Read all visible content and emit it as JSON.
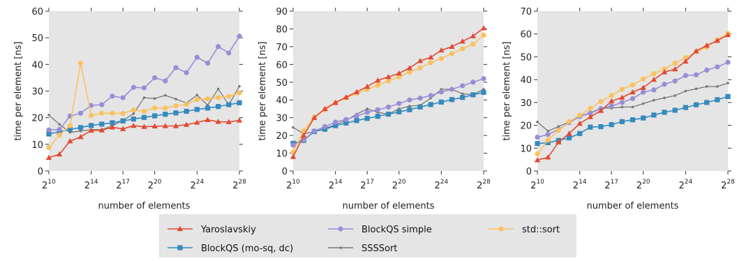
{
  "chart_data": [
    {
      "type": "line",
      "xlabel": "number of elements",
      "ylabel": "time per element [ns]",
      "xlim": [
        10,
        28
      ],
      "ylim": [
        0,
        60
      ],
      "yticks": [
        0,
        10,
        20,
        30,
        40,
        50,
        60
      ],
      "xticks": [
        10,
        14,
        17,
        20,
        24,
        28
      ],
      "xtick_base": "2",
      "grid": false,
      "series": [
        {
          "name": "Yaroslavskiy",
          "x": [
            10,
            11,
            12,
            13,
            14,
            15,
            16,
            17,
            18,
            19,
            20,
            21,
            22,
            23,
            24,
            25,
            26,
            27,
            28
          ],
          "values": [
            5,
            6.3,
            11.2,
            12.8,
            15.2,
            15.3,
            16.4,
            15.8,
            17,
            16.6,
            16.8,
            16.9,
            16.9,
            17.4,
            18.2,
            19.2,
            18.5,
            18.4,
            19
          ]
        },
        {
          "name": "BlockQS (mo-sq, dc)",
          "x": [
            10,
            11,
            12,
            13,
            14,
            15,
            16,
            17,
            18,
            19,
            20,
            21,
            22,
            23,
            24,
            25,
            26,
            27,
            28
          ],
          "values": [
            13.9,
            14.7,
            15.6,
            16.3,
            17.1,
            17.6,
            18.1,
            18.8,
            19.5,
            20.1,
            20.7,
            21.3,
            21.8,
            22.4,
            23.1,
            23.6,
            24.2,
            24.9,
            25.6
          ]
        },
        {
          "name": "BlockQS simple",
          "x": [
            10,
            11,
            12,
            13,
            14,
            15,
            16,
            17,
            18,
            19,
            20,
            21,
            22,
            23,
            24,
            25,
            26,
            27,
            28
          ],
          "values": [
            15.4,
            15.6,
            20.6,
            21.7,
            24.6,
            24.9,
            28.1,
            27.5,
            31.4,
            31.2,
            35,
            33.8,
            38.8,
            36.9,
            42.7,
            40.5,
            46.7,
            44.3,
            50.6
          ]
        },
        {
          "name": "SSSSort",
          "x": [
            10,
            11,
            12,
            13,
            14,
            15,
            16,
            17,
            18,
            19,
            20,
            21,
            22,
            23,
            24,
            25,
            26,
            27,
            28
          ],
          "values": [
            21,
            17.5,
            14.5,
            15,
            15.5,
            15.5,
            17,
            19,
            21.5,
            27.5,
            27.2,
            28.4,
            27,
            25.5,
            28.5,
            24.7,
            30.8,
            24.8,
            31.8
          ]
        },
        {
          "name": "std::sort",
          "x": [
            10,
            11,
            12,
            13,
            14,
            15,
            16,
            17,
            18,
            19,
            20,
            21,
            22,
            23,
            24,
            25,
            26,
            27,
            28
          ],
          "values": [
            8.8,
            13.5,
            17,
            40.5,
            20.8,
            21.7,
            21.7,
            21.6,
            22.9,
            22.4,
            23.7,
            23.6,
            24.5,
            25,
            26.8,
            27.1,
            27.6,
            28,
            29.3
          ]
        }
      ]
    },
    {
      "type": "line",
      "xlabel": "number of elements",
      "ylabel": "time per element [ns]",
      "xlim": [
        10,
        28
      ],
      "ylim": [
        0,
        90
      ],
      "yticks": [
        0,
        10,
        20,
        30,
        40,
        50,
        60,
        70,
        80,
        90
      ],
      "xticks": [
        10,
        14,
        17,
        20,
        24,
        28
      ],
      "xtick_base": "2",
      "grid": false,
      "series": [
        {
          "name": "Yaroslavskiy",
          "x": [
            10,
            11,
            12,
            13,
            14,
            15,
            16,
            17,
            18,
            19,
            20,
            21,
            22,
            23,
            24,
            25,
            26,
            27,
            28
          ],
          "values": [
            8,
            20,
            30,
            35,
            38.5,
            41.5,
            44.5,
            47.5,
            51,
            53,
            55,
            58,
            62,
            64,
            68,
            70,
            73,
            76,
            80.5
          ]
        },
        {
          "name": "BlockQS (mo-sq, dc)",
          "x": [
            10,
            11,
            12,
            13,
            14,
            15,
            16,
            17,
            18,
            19,
            20,
            21,
            22,
            23,
            24,
            25,
            26,
            27,
            28
          ],
          "values": [
            15.6,
            17.2,
            22.2,
            23.5,
            25.5,
            27,
            28.4,
            29.6,
            30.8,
            32,
            33.3,
            34.5,
            36,
            37.4,
            38.8,
            40.2,
            41.4,
            42.9,
            44.3
          ]
        },
        {
          "name": "BlockQS simple",
          "x": [
            10,
            11,
            12,
            13,
            14,
            15,
            16,
            17,
            18,
            19,
            20,
            21,
            22,
            23,
            24,
            25,
            26,
            27,
            28
          ],
          "values": [
            14.5,
            17.5,
            22.5,
            25,
            27.5,
            29,
            31,
            33,
            34.5,
            36,
            38,
            40,
            41,
            42.5,
            44.5,
            46,
            48,
            50,
            52
          ]
        },
        {
          "name": "SSSSort",
          "x": [
            10,
            11,
            12,
            13,
            14,
            15,
            16,
            17,
            18,
            19,
            20,
            21,
            22,
            23,
            24,
            25,
            26,
            27,
            28
          ],
          "values": [
            24.5,
            21,
            22,
            24,
            26,
            28.5,
            32,
            35,
            33,
            32,
            35,
            36.5,
            37,
            41,
            46,
            46,
            43.5,
            43,
            46
          ]
        },
        {
          "name": "std::sort",
          "x": [
            10,
            11,
            12,
            13,
            14,
            15,
            16,
            17,
            18,
            19,
            20,
            21,
            22,
            23,
            24,
            25,
            26,
            27,
            28
          ],
          "values": [
            10.7,
            22.6,
            30.5,
            34.5,
            38.4,
            41.2,
            43.7,
            46,
            48.3,
            50.6,
            53,
            55.7,
            58,
            61,
            63.3,
            66.1,
            68.8,
            71.4,
            76.5
          ]
        }
      ]
    },
    {
      "type": "line",
      "xlabel": "number of elements",
      "ylabel": "time per element [ns]",
      "xlim": [
        10,
        28
      ],
      "ylim": [
        0,
        70
      ],
      "yticks": [
        0,
        10,
        20,
        30,
        40,
        50,
        60,
        70
      ],
      "xticks": [
        10,
        14,
        17,
        20,
        24,
        28
      ],
      "xtick_base": "2",
      "grid": false,
      "series": [
        {
          "name": "Yaroslavskiy",
          "x": [
            10,
            11,
            12,
            13,
            14,
            15,
            16,
            17,
            18,
            19,
            20,
            21,
            22,
            23,
            24,
            25,
            26,
            27,
            28
          ],
          "values": [
            4.8,
            6,
            12.6,
            16.4,
            20.8,
            23.7,
            26.4,
            30.6,
            32.2,
            34.5,
            36.5,
            40,
            43.3,
            44.6,
            48,
            52.5,
            55,
            57.1,
            59.6
          ]
        },
        {
          "name": "BlockQS (mo-sq, dc)",
          "x": [
            10,
            11,
            12,
            13,
            14,
            15,
            16,
            17,
            18,
            19,
            20,
            21,
            22,
            23,
            24,
            25,
            26,
            27,
            28
          ],
          "values": [
            12,
            12.4,
            13.4,
            14.5,
            16.4,
            19.2,
            19.4,
            20.3,
            21.6,
            22.4,
            23.2,
            24.5,
            25.7,
            26.6,
            27.8,
            29,
            30,
            31.2,
            32.6
          ]
        },
        {
          "name": "BlockQS simple",
          "x": [
            10,
            11,
            12,
            13,
            14,
            15,
            16,
            17,
            18,
            19,
            20,
            21,
            22,
            23,
            24,
            25,
            26,
            27,
            28
          ],
          "values": [
            14.8,
            16,
            18.2,
            21.2,
            23.8,
            25.3,
            27.3,
            28.5,
            30,
            31.7,
            34.5,
            35.5,
            38,
            39.4,
            41.8,
            42.1,
            44.2,
            45.6,
            47.6
          ]
        },
        {
          "name": "SSSSort",
          "x": [
            10,
            11,
            12,
            13,
            14,
            15,
            16,
            17,
            18,
            19,
            20,
            21,
            22,
            23,
            24,
            25,
            26,
            27,
            28
          ],
          "values": [
            21.5,
            17.5,
            19.5,
            21.5,
            24,
            25.5,
            27.5,
            27.5,
            28,
            28,
            29.5,
            31,
            32,
            33,
            35,
            36,
            37,
            37,
            38.5
          ]
        },
        {
          "name": "std::sort",
          "x": [
            10,
            11,
            12,
            13,
            14,
            15,
            16,
            17,
            18,
            19,
            20,
            21,
            22,
            23,
            24,
            25,
            26,
            27,
            28
          ],
          "values": [
            7.5,
            13.5,
            17.8,
            21.6,
            24.4,
            27.4,
            30.4,
            33.1,
            35.8,
            37.7,
            40.3,
            42.6,
            44.7,
            47.2,
            49.6,
            52.2,
            54.2,
            57.4,
            60.2
          ]
        }
      ]
    }
  ],
  "styles": {
    "plot_bg": "#e5e5e5",
    "series": {
      "Yaroslavskiy": {
        "color": "#e24a33",
        "marker": "triangle"
      },
      "BlockQS (mo-sq, dc)": {
        "color": "#348abd",
        "marker": "square"
      },
      "BlockQS simple": {
        "color": "#988ed5",
        "marker": "circle"
      },
      "SSSSort": {
        "color": "#777777",
        "marker": "dot"
      },
      "std::sort": {
        "color": "#fbc15e",
        "marker": "circle"
      }
    }
  },
  "legend": {
    "placement": "bottom-center",
    "entries": [
      "Yaroslavskiy",
      "BlockQS simple",
      "std::sort",
      "BlockQS (mo-sq, dc)",
      "SSSSort"
    ]
  }
}
